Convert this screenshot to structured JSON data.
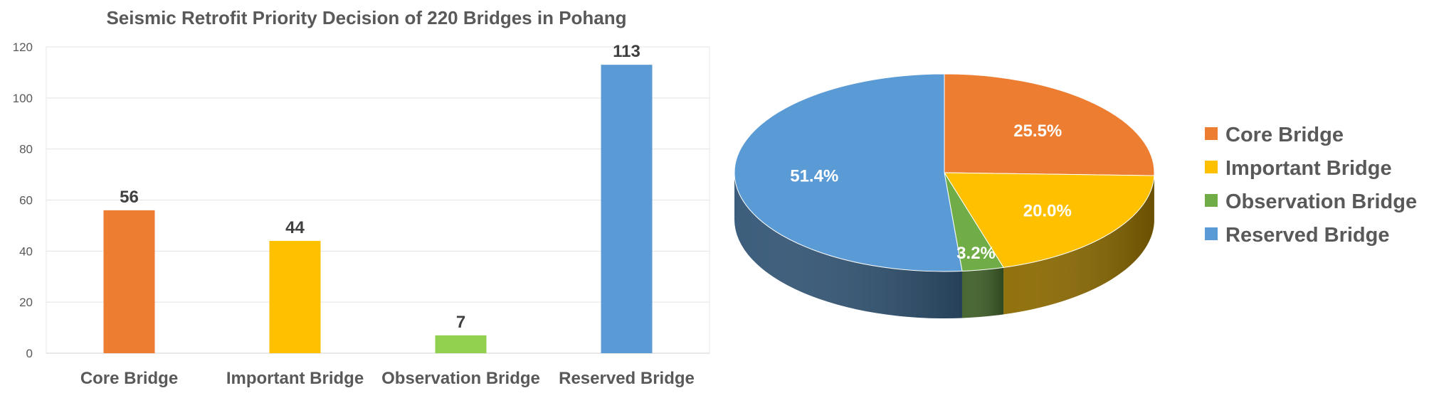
{
  "chart_data": [
    {
      "type": "bar",
      "title": "Seismic Retrofit Priority Decision of 220 Bridges in Pohang",
      "categories": [
        "Core Bridge",
        "Important Bridge",
        "Observation Bridge",
        "Reserved Bridge"
      ],
      "values": [
        56,
        44,
        7,
        113
      ],
      "data_labels": [
        "56",
        "44",
        "7",
        "113"
      ],
      "colors": [
        "#ED7D31",
        "#FFC000",
        "#92D050",
        "#5B9BD5"
      ],
      "ylim": [
        0,
        120
      ],
      "yticks": [
        "0",
        "20",
        "40",
        "60",
        "80",
        "100",
        "120"
      ],
      "grid": true,
      "xlabel": "",
      "ylabel": ""
    },
    {
      "type": "pie",
      "categories": [
        "Core Bridge",
        "Important Bridge",
        "Observation Bridge",
        "Reserved Bridge"
      ],
      "values": [
        25.5,
        20.0,
        3.2,
        51.4
      ],
      "data_labels": [
        "25.5%",
        "20.0%",
        "3.2%",
        "51.4%"
      ],
      "colors": [
        "#ED7D31",
        "#FFC000",
        "#70AD47",
        "#5B9BD5"
      ],
      "style": "3d",
      "legend": "right"
    }
  ]
}
